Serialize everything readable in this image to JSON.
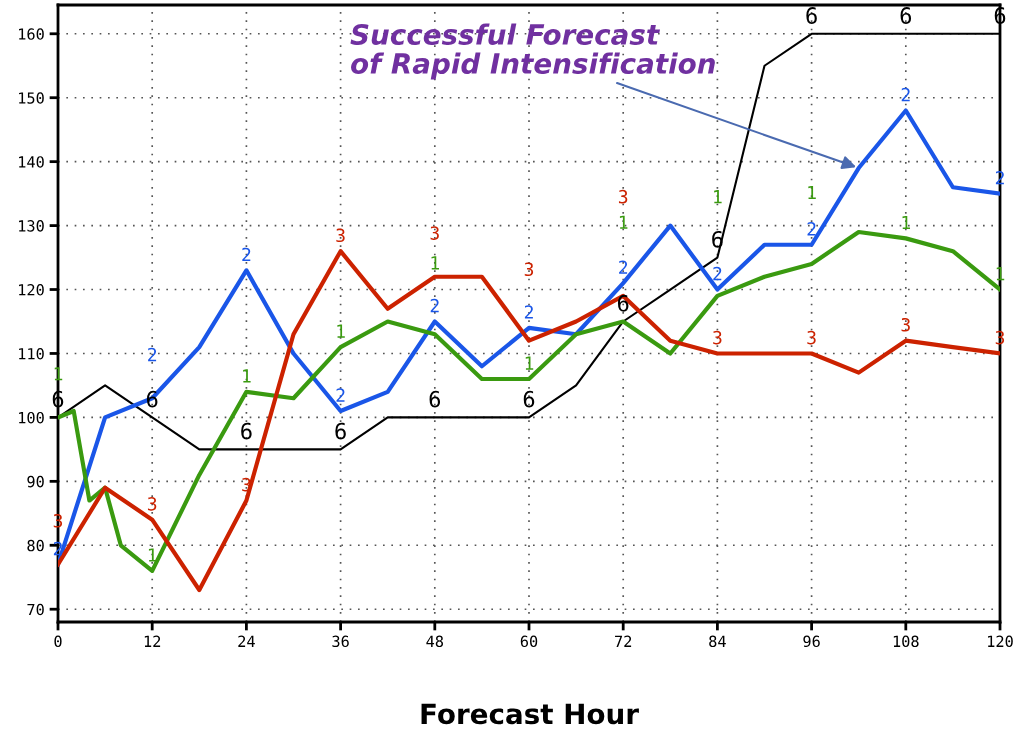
{
  "chart_data": {
    "type": "line",
    "xlabel": "Forecast Hour",
    "annotations": [
      {
        "text": "Successful Forecast\nof Rapid Intensification",
        "x": 102,
        "y": 139
      }
    ],
    "xlim": [
      0,
      120
    ],
    "xticks": [
      0,
      12,
      24,
      36,
      48,
      60,
      72,
      84,
      96,
      108,
      120
    ],
    "ylim": [
      68,
      164.5
    ],
    "yticks": [
      70,
      80,
      90,
      100,
      110,
      120,
      130,
      140,
      150,
      160
    ],
    "grid": true,
    "legend": false,
    "marker": "none",
    "line_style": "solid",
    "series": [
      {
        "name": "6",
        "color": "#000000",
        "x": [
          0,
          6,
          12,
          18,
          24,
          30,
          36,
          42,
          48,
          54,
          60,
          66,
          72,
          78,
          84,
          90,
          96,
          102,
          108,
          114,
          120
        ],
        "values": [
          100,
          105,
          100,
          95,
          95,
          95,
          95,
          100,
          100,
          100,
          100,
          105,
          115,
          120,
          125,
          155,
          160,
          160,
          160,
          160,
          160
        ]
      },
      {
        "name": "2",
        "color": "#1a56e8",
        "x": [
          0,
          6,
          12,
          18,
          24,
          30,
          36,
          42,
          48,
          54,
          60,
          66,
          72,
          78,
          84,
          90,
          96,
          102,
          108,
          114,
          120
        ],
        "values": [
          77,
          100,
          103,
          111,
          123,
          110,
          101,
          104,
          115,
          108,
          114,
          113,
          121,
          130,
          120,
          127,
          127,
          139,
          148,
          136,
          135
        ]
      },
      {
        "name": "1",
        "color": "#3a9a10",
        "x": [
          0,
          2,
          4,
          6,
          8,
          12,
          18,
          24,
          30,
          36,
          42,
          48,
          54,
          60,
          66,
          72,
          78,
          84,
          90,
          96,
          102,
          108,
          114,
          120
        ],
        "values": [
          100,
          101,
          87,
          89,
          80,
          76,
          91,
          104,
          103,
          111,
          115,
          113,
          106,
          106,
          113,
          115,
          110,
          119,
          122,
          124,
          129,
          128,
          126,
          120
        ]
      },
      {
        "name": "3",
        "color": "#cc2200",
        "x": [
          0,
          6,
          12,
          18,
          24,
          30,
          36,
          42,
          48,
          54,
          60,
          66,
          72,
          78,
          84,
          90,
          96,
          102,
          108,
          114,
          120
        ],
        "values": [
          77,
          89,
          84,
          73,
          87,
          113,
          126,
          117,
          122,
          122,
          112,
          115,
          119,
          112,
          110,
          110,
          110,
          107,
          112,
          111,
          110
        ]
      }
    ]
  }
}
